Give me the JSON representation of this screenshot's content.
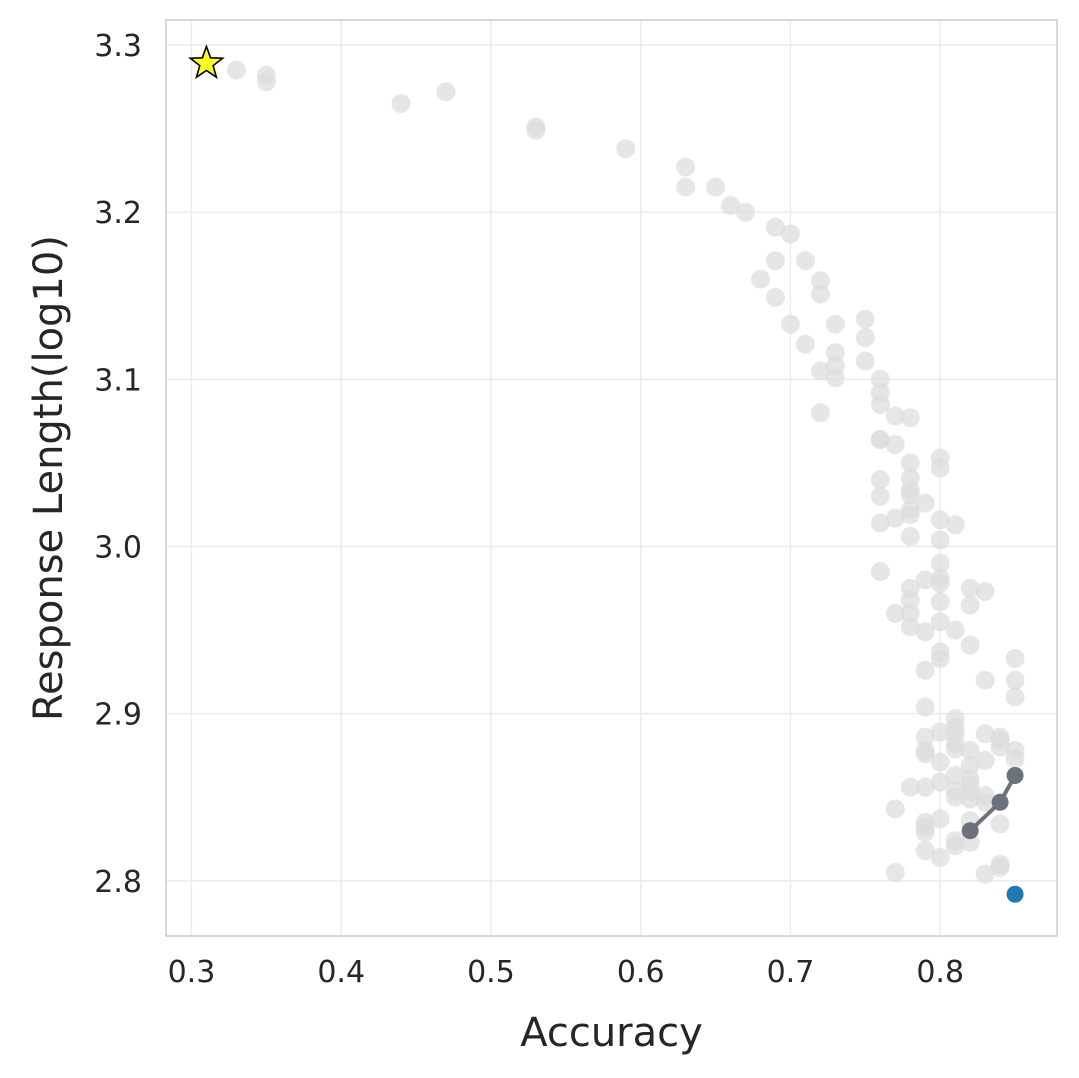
{
  "chart_data": {
    "type": "scatter",
    "title": "",
    "xlabel": "Accuracy",
    "ylabel": "Response Length(log10)",
    "xlim": [
      0.283,
      0.878
    ],
    "ylim": [
      2.767,
      3.315
    ],
    "xticks": [
      0.3,
      0.4,
      0.5,
      0.6,
      0.7,
      0.8
    ],
    "yticks": [
      2.8,
      2.9,
      3.0,
      3.1,
      3.2,
      3.3
    ],
    "grid": true,
    "colors": {
      "background_points": "#dcdcdc",
      "line_series": "#6b717d",
      "highlight_point": "#1f77b4",
      "star_fill": "#ffff22",
      "star_stroke": "#000000",
      "grid": "#ebebeb",
      "frame": "#cccccc"
    },
    "series": [
      {
        "role": "background",
        "marker": "circle",
        "points": [
          [
            0.33,
            3.285
          ],
          [
            0.35,
            3.282
          ],
          [
            0.35,
            3.278
          ],
          [
            0.44,
            3.265
          ],
          [
            0.47,
            3.272
          ],
          [
            0.53,
            3.251
          ],
          [
            0.53,
            3.249
          ],
          [
            0.59,
            3.238
          ],
          [
            0.63,
            3.227
          ],
          [
            0.63,
            3.215
          ],
          [
            0.65,
            3.215
          ],
          [
            0.66,
            3.204
          ],
          [
            0.67,
            3.2
          ],
          [
            0.69,
            3.191
          ],
          [
            0.7,
            3.187
          ],
          [
            0.69,
            3.171
          ],
          [
            0.71,
            3.171
          ],
          [
            0.68,
            3.16
          ],
          [
            0.72,
            3.159
          ],
          [
            0.72,
            3.151
          ],
          [
            0.69,
            3.149
          ],
          [
            0.75,
            3.136
          ],
          [
            0.7,
            3.133
          ],
          [
            0.73,
            3.133
          ],
          [
            0.75,
            3.125
          ],
          [
            0.71,
            3.121
          ],
          [
            0.73,
            3.116
          ],
          [
            0.73,
            3.108
          ],
          [
            0.75,
            3.111
          ],
          [
            0.72,
            3.105
          ],
          [
            0.73,
            3.101
          ],
          [
            0.76,
            3.1
          ],
          [
            0.76,
            3.092
          ],
          [
            0.76,
            3.085
          ],
          [
            0.72,
            3.08
          ],
          [
            0.77,
            3.078
          ],
          [
            0.78,
            3.077
          ],
          [
            0.76,
            3.064
          ],
          [
            0.76,
            3.064
          ],
          [
            0.77,
            3.061
          ],
          [
            0.8,
            3.053
          ],
          [
            0.78,
            3.05
          ],
          [
            0.8,
            3.047
          ],
          [
            0.78,
            3.041
          ],
          [
            0.76,
            3.04
          ],
          [
            0.78,
            3.034
          ],
          [
            0.78,
            3.031
          ],
          [
            0.76,
            3.03
          ],
          [
            0.79,
            3.026
          ],
          [
            0.78,
            3.022
          ],
          [
            0.78,
            3.019
          ],
          [
            0.77,
            3.017
          ],
          [
            0.8,
            3.016
          ],
          [
            0.76,
            3.014
          ],
          [
            0.81,
            3.013
          ],
          [
            0.78,
            3.006
          ],
          [
            0.8,
            3.004
          ],
          [
            0.8,
            2.99
          ],
          [
            0.76,
            2.985
          ],
          [
            0.79,
            2.98
          ],
          [
            0.8,
            2.981
          ],
          [
            0.8,
            2.978
          ],
          [
            0.78,
            2.975
          ],
          [
            0.82,
            2.975
          ],
          [
            0.83,
            2.973
          ],
          [
            0.78,
            2.968
          ],
          [
            0.8,
            2.967
          ],
          [
            0.82,
            2.965
          ],
          [
            0.78,
            2.96
          ],
          [
            0.77,
            2.96
          ],
          [
            0.8,
            2.955
          ],
          [
            0.78,
            2.952
          ],
          [
            0.81,
            2.95
          ],
          [
            0.79,
            2.949
          ],
          [
            0.82,
            2.941
          ],
          [
            0.8,
            2.937
          ],
          [
            0.8,
            2.933
          ],
          [
            0.85,
            2.933
          ],
          [
            0.79,
            2.926
          ],
          [
            0.83,
            2.92
          ],
          [
            0.85,
            2.92
          ],
          [
            0.85,
            2.91
          ],
          [
            0.79,
            2.904
          ],
          [
            0.81,
            2.897
          ],
          [
            0.81,
            2.892
          ],
          [
            0.8,
            2.889
          ],
          [
            0.81,
            2.888
          ],
          [
            0.83,
            2.888
          ],
          [
            0.84,
            2.886
          ],
          [
            0.79,
            2.886
          ],
          [
            0.84,
            2.884
          ],
          [
            0.81,
            2.882
          ],
          [
            0.84,
            2.88
          ],
          [
            0.81,
            2.879
          ],
          [
            0.82,
            2.878
          ],
          [
            0.79,
            2.878
          ],
          [
            0.85,
            2.878
          ],
          [
            0.79,
            2.876
          ],
          [
            0.85,
            2.873
          ],
          [
            0.83,
            2.872
          ],
          [
            0.8,
            2.871
          ],
          [
            0.82,
            2.869
          ],
          [
            0.81,
            2.863
          ],
          [
            0.82,
            2.861
          ],
          [
            0.8,
            2.859
          ],
          [
            0.82,
            2.857
          ],
          [
            0.78,
            2.856
          ],
          [
            0.79,
            2.856
          ],
          [
            0.81,
            2.854
          ],
          [
            0.82,
            2.853
          ],
          [
            0.83,
            2.851
          ],
          [
            0.81,
            2.85
          ],
          [
            0.82,
            2.849
          ],
          [
            0.83,
            2.847
          ],
          [
            0.77,
            2.843
          ],
          [
            0.8,
            2.837
          ],
          [
            0.79,
            2.835
          ],
          [
            0.82,
            2.836
          ],
          [
            0.84,
            2.834
          ],
          [
            0.79,
            2.832
          ],
          [
            0.79,
            2.829
          ],
          [
            0.81,
            2.824
          ],
          [
            0.82,
            2.823
          ],
          [
            0.81,
            2.821
          ],
          [
            0.79,
            2.818
          ],
          [
            0.8,
            2.814
          ],
          [
            0.84,
            2.81
          ],
          [
            0.84,
            2.808
          ],
          [
            0.77,
            2.805
          ],
          [
            0.83,
            2.804
          ]
        ]
      },
      {
        "role": "connected",
        "marker": "circle-line",
        "points": [
          [
            0.82,
            2.83
          ],
          [
            0.84,
            2.847
          ],
          [
            0.85,
            2.863
          ]
        ]
      },
      {
        "role": "highlight",
        "marker": "circle",
        "points": [
          [
            0.85,
            2.792
          ]
        ]
      },
      {
        "role": "star",
        "marker": "star",
        "points": [
          [
            0.31,
            3.289
          ]
        ]
      }
    ]
  }
}
